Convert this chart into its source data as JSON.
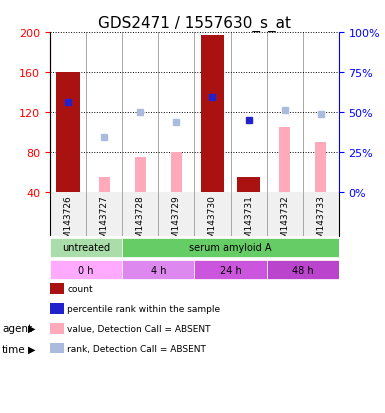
{
  "title": "GDS2471 / 1557630_s_at",
  "samples": [
    "GSM143726",
    "GSM143727",
    "GSM143728",
    "GSM143729",
    "GSM143730",
    "GSM143731",
    "GSM143732",
    "GSM143733"
  ],
  "ylim_left": [
    40,
    200
  ],
  "ylim_right": [
    0,
    100
  ],
  "yticks_left": [
    40,
    80,
    120,
    160,
    200
  ],
  "yticks_right": [
    0,
    25,
    50,
    75,
    100
  ],
  "bar_counts": [
    160,
    null,
    null,
    null,
    197,
    55,
    null,
    null
  ],
  "bar_counts_color": "#aa1111",
  "bar_values_absent": [
    null,
    55,
    75,
    80,
    null,
    null,
    105,
    90
  ],
  "bar_values_absent_color": "#ffaabb",
  "rank_dots_present": [
    130,
    null,
    null,
    null,
    135,
    112,
    null,
    null
  ],
  "rank_dots_present_color": "#2222cc",
  "rank_dots_absent": [
    null,
    95,
    120,
    110,
    null,
    null,
    122,
    118
  ],
  "rank_dots_absent_color": "#aabbdd",
  "agent_groups": [
    {
      "label": "untreated",
      "start": 0,
      "end": 2,
      "color": "#aaddaa"
    },
    {
      "label": "serum amyloid A",
      "start": 2,
      "end": 8,
      "color": "#66cc66"
    }
  ],
  "time_groups": [
    {
      "label": "0 h",
      "start": 0,
      "end": 2,
      "color": "#ffaaff"
    },
    {
      "label": "4 h",
      "start": 2,
      "end": 4,
      "color": "#dd88ee"
    },
    {
      "label": "24 h",
      "start": 4,
      "end": 6,
      "color": "#cc66dd"
    },
    {
      "label": "48 h",
      "start": 6,
      "end": 8,
      "color": "#bb44cc"
    }
  ],
  "legend_items": [
    {
      "color": "#aa1111",
      "label": "count"
    },
    {
      "color": "#2222cc",
      "label": "percentile rank within the sample"
    },
    {
      "color": "#ffaabb",
      "label": "value, Detection Call = ABSENT"
    },
    {
      "color": "#aabbdd",
      "label": "rank, Detection Call = ABSENT"
    }
  ],
  "background_color": "#f0f0f0",
  "plot_bg": "#ffffff",
  "grid_color": "#000000",
  "title_fontsize": 11,
  "tick_fontsize": 8
}
